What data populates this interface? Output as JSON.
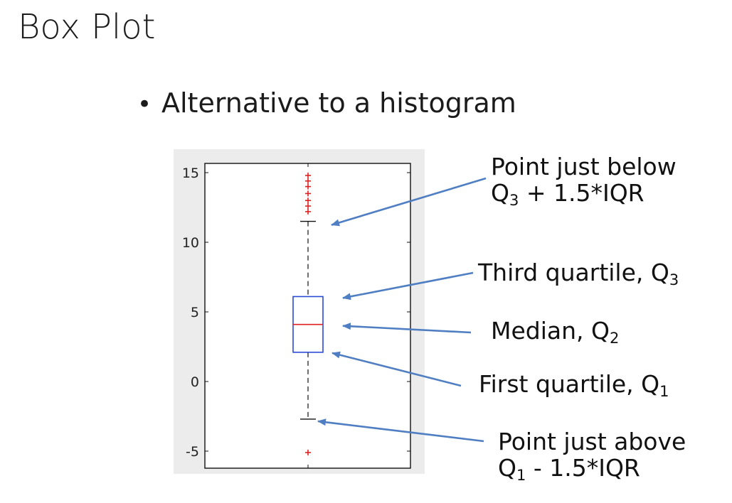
{
  "slide": {
    "title": "Box Plot",
    "bullet": "Alternative to a histogram"
  },
  "chart_data": {
    "type": "box",
    "ylim": [
      -6,
      16
    ],
    "y_ticks": [
      15,
      10,
      5,
      0,
      -5
    ],
    "grid": false,
    "box": {
      "q1": 2.1,
      "median": 4.1,
      "q3": 6.1,
      "whisker_low": -2.7,
      "whisker_high": 11.5
    },
    "outliers": [
      14.8,
      14.4,
      14.0,
      13.5,
      13.0,
      12.6,
      12.2,
      -5.1
    ],
    "colors": {
      "box": "#2b4bd6",
      "median": "#e02020",
      "outlier": "#e02020",
      "whisker": "#111111",
      "arrow": "#4f7ec2",
      "plot_bg": "#ececec"
    }
  },
  "annotations": {
    "upper_whisker": {
      "line1": "Point just below",
      "q_letter": "Q",
      "q_index": "3",
      "rest": " + 1.5*IQR"
    },
    "third_quartile": {
      "text": "Third quartile, Q",
      "index": "3"
    },
    "median": {
      "text": "Median, Q",
      "index": "2"
    },
    "first_quartile": {
      "text": "First quartile, Q",
      "index": "1"
    },
    "lower_whisker": {
      "line1": "Point just above",
      "q_letter": "Q",
      "q_index": "1",
      "rest": " - 1.5*IQR"
    }
  }
}
